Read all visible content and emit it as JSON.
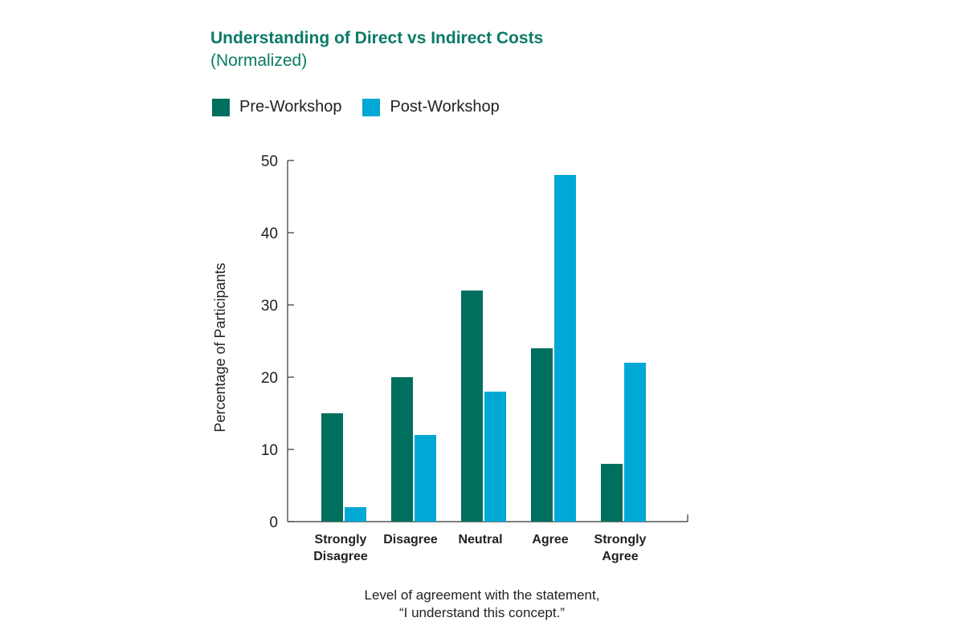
{
  "title": "Understanding of Direct vs Indirect Costs",
  "subtitle": "(Normalized)",
  "legend": [
    {
      "label": "Pre-Workshop",
      "color": "#006f5e"
    },
    {
      "label": "Post-Workshop",
      "color": "#00a8d6"
    }
  ],
  "caption": {
    "line1": "Level of agreement with the statement,",
    "line2": "“I understand this concept.”"
  },
  "chart_data": {
    "type": "bar",
    "title": "Understanding of Direct vs Indirect Costs",
    "subtitle": "(Normalized)",
    "categories": [
      "Strongly Disagree",
      "Disagree",
      "Neutral",
      "Agree",
      "Strongly Agree"
    ],
    "category_lines": [
      [
        "Strongly",
        "Disagree"
      ],
      [
        "Disagree"
      ],
      [
        "Neutral"
      ],
      [
        "Agree"
      ],
      [
        "Strongly",
        "Agree"
      ]
    ],
    "series": [
      {
        "name": "Pre-Workshop",
        "color": "#006f5e",
        "values": [
          15,
          20,
          32,
          24,
          8
        ]
      },
      {
        "name": "Post-Workshop",
        "color": "#00a8d6",
        "values": [
          2,
          12,
          18,
          48,
          22
        ]
      }
    ],
    "ylabel": "Percentage of Participants",
    "xlabel": "Level of agreement with the statement, “I understand this concept.”",
    "ylim": [
      0,
      50
    ],
    "yticks": [
      0,
      10,
      20,
      30,
      40,
      50
    ],
    "grid": false,
    "legend_position": "top-left"
  }
}
